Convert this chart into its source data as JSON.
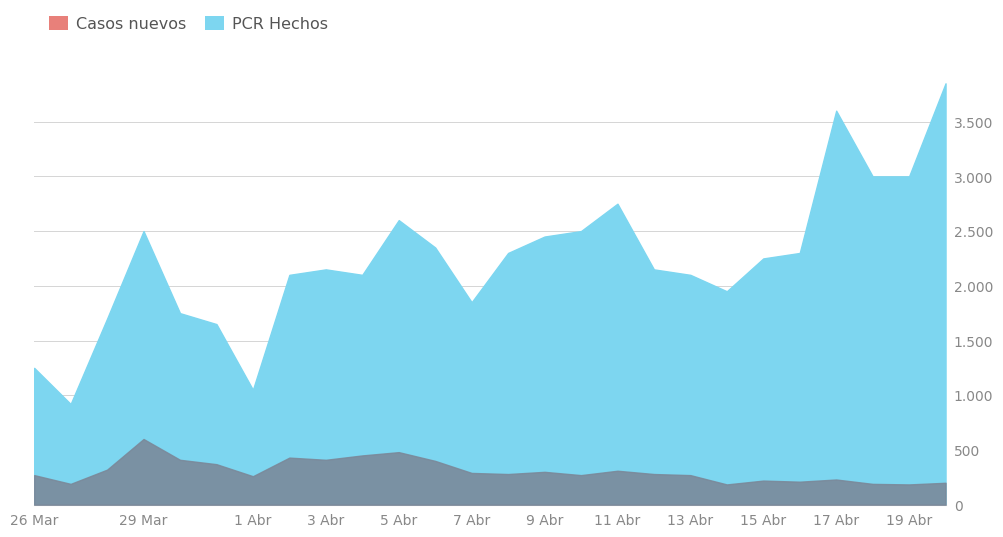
{
  "dates_count": 26,
  "pcr": [
    1250,
    920,
    1700,
    2500,
    1750,
    1650,
    1050,
    2100,
    2150,
    2100,
    2600,
    2350,
    1850,
    2300,
    2450,
    2500,
    2750,
    2150,
    2100,
    1950,
    2250,
    2300,
    3600,
    3000,
    3000,
    3850
  ],
  "casos": [
    270,
    190,
    320,
    600,
    410,
    370,
    260,
    430,
    410,
    450,
    480,
    400,
    290,
    280,
    300,
    270,
    310,
    280,
    270,
    185,
    220,
    210,
    230,
    190,
    185,
    200
  ],
  "tick_labels": [
    "26 Mar",
    "29 Mar",
    "1 Abr",
    "3 Abr",
    "5 Abr",
    "7 Abr",
    "9 Abr",
    "11 Abr",
    "13 Abr",
    "15 Abr",
    "17 Abr",
    "19 Abr"
  ],
  "tick_positions": [
    0,
    3,
    6,
    8,
    10,
    12,
    14,
    16,
    18,
    20,
    22,
    24
  ],
  "pcr_color": "#7dd6f0",
  "casos_fill_color": "#7a8899",
  "ylim_max": 4000,
  "yticks": [
    0,
    500,
    1000,
    1500,
    2000,
    2500,
    3000,
    3500
  ],
  "legend_casos": "Casos nuevos",
  "legend_pcr": "PCR Hechos",
  "background_color": "#ffffff",
  "grid_color": "#d5d5d5",
  "legend_casos_color": "#e8807a",
  "legend_pcr_color": "#7dd6f0"
}
